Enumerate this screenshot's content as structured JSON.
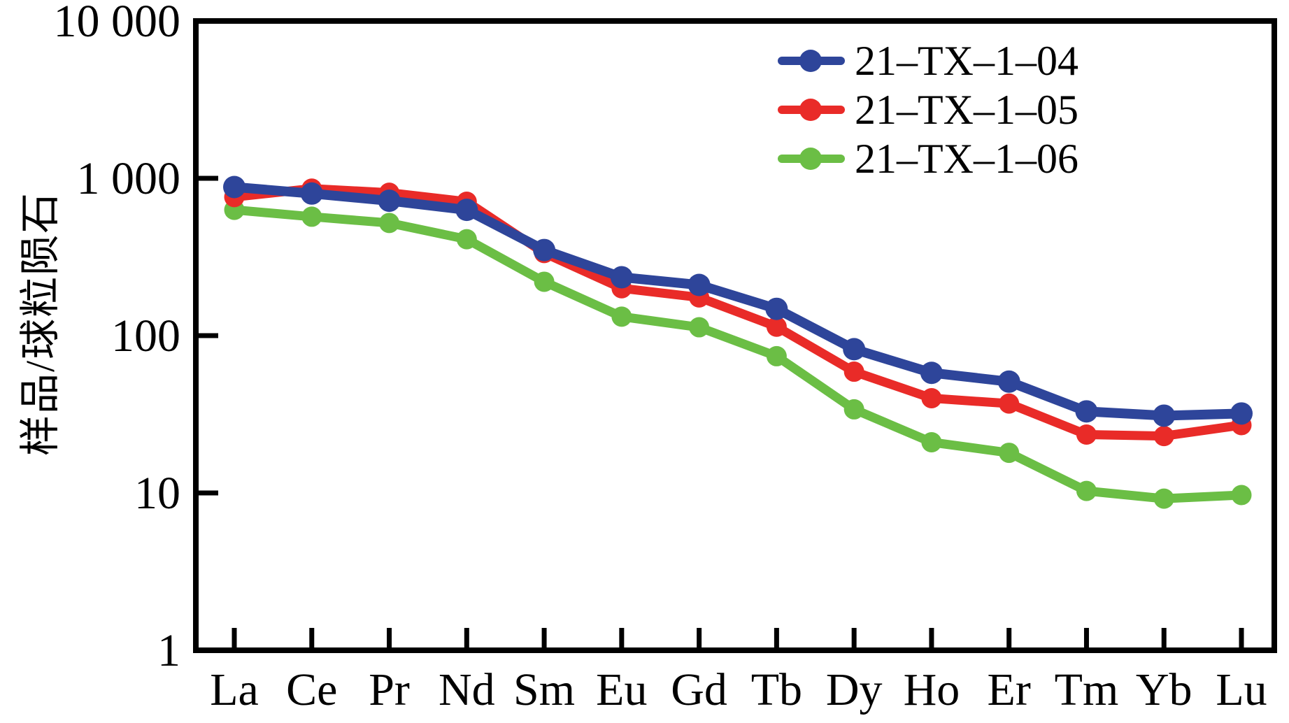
{
  "figure": {
    "background": "#ffffff"
  },
  "chart_data": {
    "type": "line",
    "title": "",
    "xlabel": "",
    "ylabel": "样品/球粒陨石",
    "y_scale": "log",
    "ylim": [
      1,
      10000
    ],
    "y_tick_values": [
      10000,
      1000,
      100,
      10,
      1
    ],
    "y_tick_labels": [
      "10 000",
      "1 000",
      "100",
      "10",
      "1"
    ],
    "categories": [
      "La",
      "Ce",
      "Pr",
      "Nd",
      "Sm",
      "Eu",
      "Gd",
      "Tb",
      "Dy",
      "Ho",
      "Er",
      "Tm",
      "Yb",
      "Lu"
    ],
    "series": [
      {
        "name": "21–TX–1–04",
        "color": "#2E459A",
        "marker": "circle",
        "values": [
          880,
          800,
          720,
          630,
          350,
          235,
          210,
          148,
          82,
          58,
          51,
          33,
          31,
          32
        ]
      },
      {
        "name": "21–TX–1–05",
        "color": "#E92B28",
        "marker": "circle",
        "values": [
          760,
          860,
          810,
          710,
          335,
          200,
          175,
          114,
          59,
          40,
          37,
          23.5,
          23,
          27
        ]
      },
      {
        "name": "21–TX–1–06",
        "color": "#6BBE45",
        "marker": "circle",
        "values": [
          630,
          570,
          520,
          410,
          220,
          132,
          113,
          74,
          34,
          21,
          18,
          10.3,
          9.2,
          9.7
        ]
      }
    ],
    "legend_position": "top-right",
    "grid": false
  }
}
